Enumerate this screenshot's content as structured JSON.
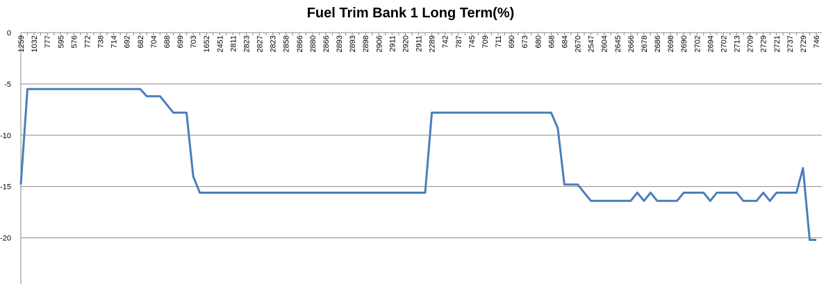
{
  "chart_data": {
    "type": "line",
    "title": "Fuel Trim Bank 1 Long Term(%)",
    "categories": [
      "1259",
      null,
      "1032",
      null,
      "777",
      null,
      "595",
      null,
      "576",
      null,
      "772",
      null,
      "738",
      null,
      "714",
      null,
      "692",
      null,
      "682",
      null,
      "704",
      null,
      "688",
      null,
      "699",
      null,
      "703",
      null,
      "1652",
      null,
      "2451",
      null,
      "2811",
      null,
      "2823",
      null,
      "2827",
      null,
      "2823",
      null,
      "2858",
      null,
      "2866",
      null,
      "2880",
      null,
      "2866",
      null,
      "2893",
      null,
      "2893",
      null,
      "2898",
      null,
      "2906",
      null,
      "2911",
      null,
      "2920",
      null,
      "2911",
      null,
      "2289",
      null,
      "742",
      null,
      "787",
      null,
      "745",
      null,
      "709",
      null,
      "711",
      null,
      "690",
      null,
      "673",
      null,
      "680",
      null,
      "668",
      null,
      "684",
      null,
      "2670",
      null,
      "2547",
      null,
      "2604",
      null,
      "2645",
      null,
      "2666",
      null,
      "2678",
      null,
      "2686",
      null,
      "2698",
      null,
      "2690",
      null,
      "2702",
      null,
      "2694",
      null,
      "2702",
      null,
      "2713",
      null,
      "2709",
      null,
      "2729",
      null,
      "2721",
      null,
      "2737",
      null,
      "2729",
      null,
      "746"
    ],
    "series": [
      {
        "color": "#4a7ebb",
        "values": [
          -14.8,
          -5.5,
          -5.5,
          -5.5,
          -5.5,
          -5.5,
          -5.5,
          -5.5,
          -5.5,
          -5.5,
          -5.5,
          -5.5,
          -5.5,
          -5.5,
          -5.5,
          -5.5,
          -5.5,
          -5.5,
          -5.5,
          -6.2,
          -6.2,
          -6.2,
          -7,
          -7.8,
          -7.8,
          -7.8,
          -14,
          -15.6,
          -15.6,
          -15.6,
          -15.6,
          -15.6,
          -15.6,
          -15.6,
          -15.6,
          -15.6,
          -15.6,
          -15.6,
          -15.6,
          -15.6,
          -15.6,
          -15.6,
          -15.6,
          -15.6,
          -15.6,
          -15.6,
          -15.6,
          -15.6,
          -15.6,
          -15.6,
          -15.6,
          -15.6,
          -15.6,
          -15.6,
          -15.6,
          -15.6,
          -15.6,
          -15.6,
          -15.6,
          -15.6,
          -15.6,
          -15.6,
          -7.8,
          -7.8,
          -7.8,
          -7.8,
          -7.8,
          -7.8,
          -7.8,
          -7.8,
          -7.8,
          -7.8,
          -7.8,
          -7.8,
          -7.8,
          -7.8,
          -7.8,
          -7.8,
          -7.8,
          -7.8,
          -7.8,
          -9.3,
          -14.8,
          -14.8,
          -14.8,
          -15.6,
          -16.4,
          -16.4,
          -16.4,
          -16.4,
          -16.4,
          -16.4,
          -16.4,
          -15.6,
          -16.4,
          -15.6,
          -16.4,
          -16.4,
          -16.4,
          -16.4,
          -15.6,
          -15.6,
          -15.6,
          -15.6,
          -16.4,
          -15.6,
          -15.6,
          -15.6,
          -15.6,
          -16.4,
          -16.4,
          -16.4,
          -15.6,
          -16.4,
          -15.6,
          -15.6,
          -15.6,
          -15.6,
          -13.2,
          -20.2,
          -20.2
        ]
      }
    ],
    "ylim": [
      -24.5,
      0
    ],
    "yticks": [
      0,
      -5,
      -10,
      -15,
      -20
    ],
    "grid": true
  }
}
